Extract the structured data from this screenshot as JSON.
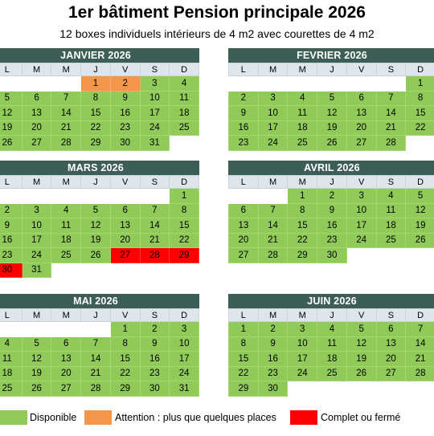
{
  "title": "1er bâtiment Pension principale 2026",
  "subtitle": "12 boxes individuels intérieurs de 4 m2 avec courettes de 4 m2",
  "days": [
    "L",
    "M",
    "M",
    "J",
    "V",
    "S",
    "D"
  ],
  "colors": {
    "disponible": "#90cb5a",
    "attention": "#f4964a",
    "complet": "#ff0000",
    "header": "#3d5e56"
  },
  "months": [
    {
      "name": "JANVIER 2026",
      "start": 3,
      "days": 31,
      "attention": [
        1,
        2
      ],
      "full": []
    },
    {
      "name": "FEVRIER 2026",
      "start": 6,
      "days": 28,
      "attention": [],
      "full": []
    },
    {
      "name": "MARS 2026",
      "start": 6,
      "days": 31,
      "attention": [],
      "full": [
        27,
        28,
        29,
        30
      ]
    },
    {
      "name": "AVRIL 2026",
      "start": 2,
      "days": 30,
      "attention": [],
      "full": []
    },
    {
      "name": "MAI 2026",
      "start": 4,
      "days": 31,
      "attention": [],
      "full": []
    },
    {
      "name": "JUIN 2026",
      "start": 0,
      "days": 30,
      "attention": [],
      "full": []
    }
  ],
  "legend": [
    {
      "label": "Disponible",
      "color": "#90cb5a"
    },
    {
      "label": "Attention : plus que quelques places",
      "color": "#f4964a"
    },
    {
      "label": "Complet ou fermé",
      "color": "#ff0000"
    }
  ]
}
